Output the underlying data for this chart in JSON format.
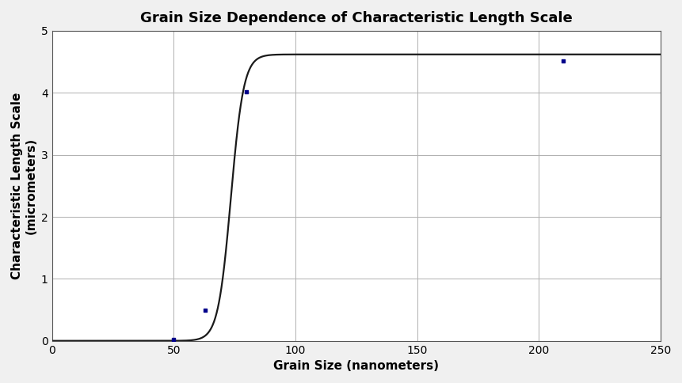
{
  "title": "Grain Size Dependence of Characteristic Length Scale",
  "xlabel": "Grain Size (nanometers)",
  "ylabel": "Characteristic Length Scale\n(micrometers)",
  "xlim": [
    0,
    250
  ],
  "ylim": [
    0,
    5
  ],
  "xticks": [
    0,
    50,
    100,
    150,
    200,
    250
  ],
  "yticks": [
    0,
    1,
    2,
    3,
    4,
    5
  ],
  "data_points_x": [
    50,
    63,
    80,
    210
  ],
  "data_points_y": [
    0.02,
    0.5,
    4.02,
    4.52
  ],
  "point_color": "#00008B",
  "curve_color": "#1a1a1a",
  "background_color": "#f0f0f0",
  "plot_bg_color": "#ffffff",
  "grid_color": "#b0b0b0",
  "sigmoid_L": 4.62,
  "sigmoid_k": 0.38,
  "sigmoid_x0": 73.5,
  "title_fontsize": 13,
  "label_fontsize": 11,
  "tick_fontsize": 10,
  "point_size": 12,
  "linewidth": 1.6
}
